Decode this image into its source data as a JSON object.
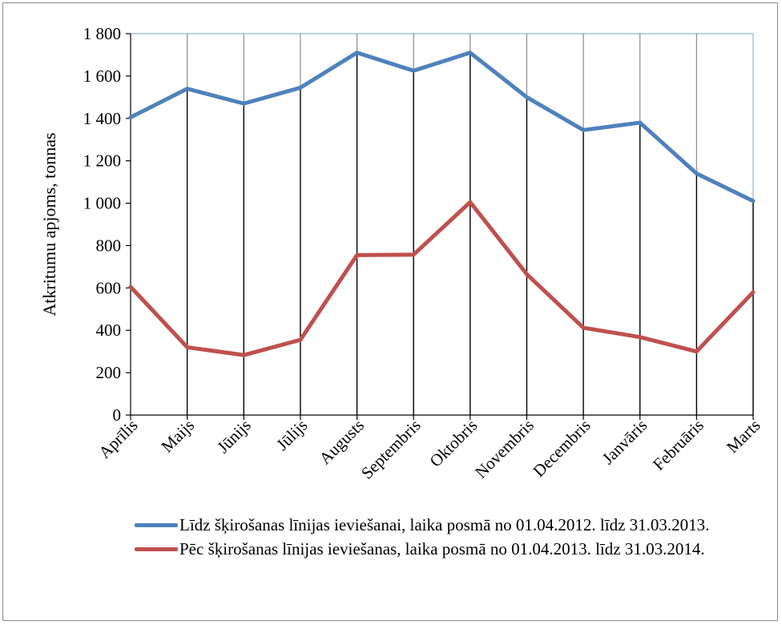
{
  "chart_data": {
    "type": "line",
    "ylabel": "Atkritumu apjoms, tonnas",
    "ylim": [
      0,
      1800
    ],
    "ytick_step": 200,
    "ytick_labels": [
      "0",
      "200",
      "400",
      "600",
      "800",
      "1 000",
      "1 200",
      "1 400",
      "1 600",
      "1 800"
    ],
    "categories": [
      "Aprīlis",
      "Maijs",
      "Jūnijs",
      "Jūlijs",
      "Augusts",
      "Septembris",
      "Oktobris",
      "Novembris",
      "Decembris",
      "Janvāris",
      "Februāris",
      "Marts"
    ],
    "series": [
      {
        "name": "Līdz šķirošanas līnijas ieviešanai, laika posmā no  01.04.2012. līdz 31.03.2013.",
        "color": "#4f81bd",
        "values": [
          1405,
          1540,
          1470,
          1545,
          1710,
          1625,
          1710,
          1500,
          1345,
          1380,
          1140,
          1010
        ]
      },
      {
        "name": "Pēc šķirošanas līnijas ieviešanas, laika posmā no 01.04.2013. līdz 31.03.2014.",
        "color": "#c0504d",
        "values": [
          605,
          320,
          283,
          355,
          755,
          757,
          1005,
          665,
          412,
          368,
          300,
          580
        ]
      }
    ],
    "legend_position": "bottom",
    "grid": "vertical"
  }
}
